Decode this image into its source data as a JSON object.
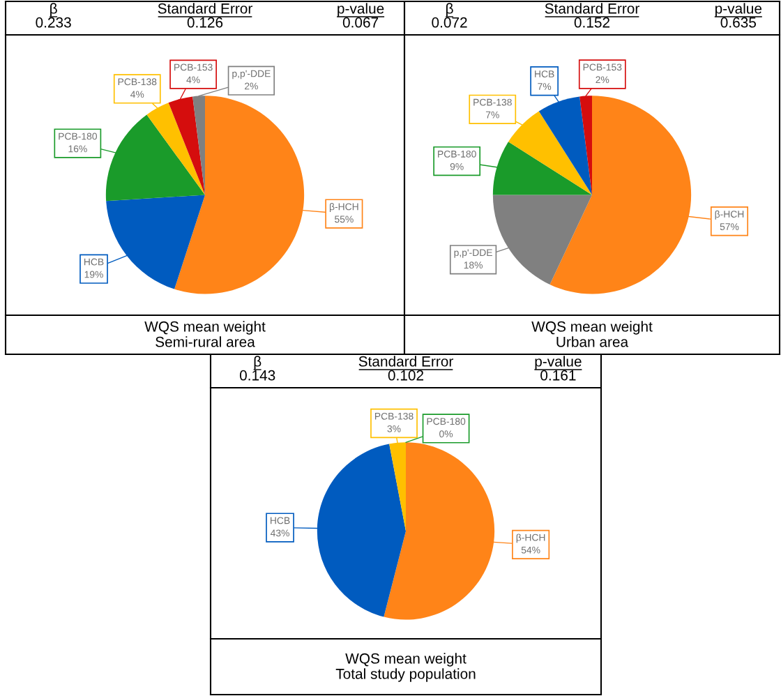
{
  "chart_data": [
    {
      "type": "pie",
      "title": "WQS mean weight",
      "subtitle": "Semi-rural area",
      "annotations": [
        "β",
        "0.233",
        "Standard Error",
        "0.126",
        "p-value",
        "0.067"
      ],
      "categories": [
        "β-HCH",
        "HCB",
        "PCB-180",
        "PCB-138",
        "PCB-153",
        "p,p'-DDE"
      ],
      "values": [
        55,
        19,
        16,
        4,
        4,
        2
      ],
      "value_labels": [
        "55%",
        "19%",
        "16%",
        "4%",
        "4%",
        "2%"
      ],
      "colors": [
        "#ff8418",
        "#005bbf",
        "#1a9b2a",
        "#ffc000",
        "#d50d0d",
        "#808080"
      ]
    },
    {
      "type": "pie",
      "title": "WQS mean weight",
      "subtitle": "Urban area",
      "annotations": [
        "β",
        "0.072",
        "Standard Error",
        "0.152",
        "p-value",
        "0.635"
      ],
      "categories": [
        "β-HCH",
        "p,p'-DDE",
        "PCB-180",
        "PCB-138",
        "HCB",
        "PCB-153"
      ],
      "values": [
        57,
        18,
        9,
        7,
        7,
        2
      ],
      "value_labels": [
        "57%",
        "18%",
        "9%",
        "7%",
        "7%",
        "2%"
      ],
      "colors": [
        "#ff8418",
        "#808080",
        "#1a9b2a",
        "#ffc000",
        "#005bbf",
        "#d50d0d"
      ]
    },
    {
      "type": "pie",
      "title": "WQS mean weight",
      "subtitle": "Total study population",
      "annotations": [
        "β",
        "0.143",
        "Standard Error",
        "0.102",
        "p-value",
        "0.161"
      ],
      "categories": [
        "β-HCH",
        "HCB",
        "PCB-138",
        "PCB-180"
      ],
      "values": [
        54,
        43,
        3,
        0
      ],
      "value_labels": [
        "54%",
        "43%",
        "3%",
        "0%"
      ],
      "colors": [
        "#ff8418",
        "#005bbf",
        "#ffc000",
        "#1a9b2a"
      ]
    }
  ]
}
